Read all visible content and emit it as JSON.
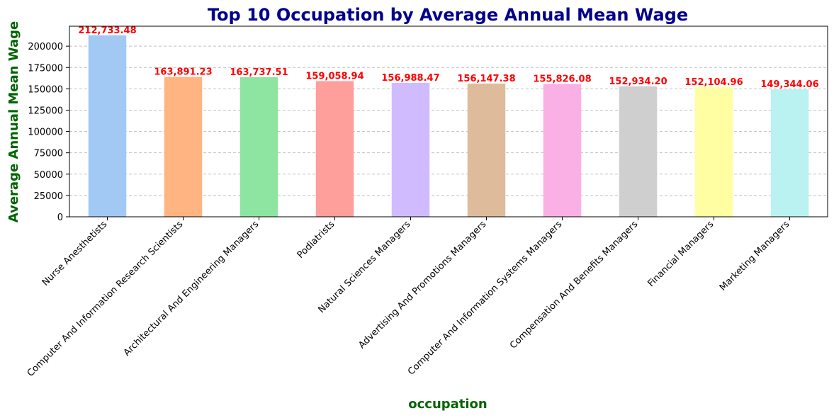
{
  "chart_data": {
    "type": "bar",
    "title": "Top 10 Occupation by Average Annual Mean Wage",
    "xlabel": "occupation",
    "ylabel": "Average Annual Mean Wage",
    "categories": [
      "Nurse Anesthetists",
      "Computer And Information Research Scientists",
      "Architectural And Engineering Managers",
      "Podiatrists",
      "Natural Sciences Managers",
      "Advertising And Promotions Managers",
      "Computer And Information Systems Managers",
      "Compensation And Benefits Managers",
      "Financial Managers",
      "Marketing Managers"
    ],
    "values": [
      212733.48,
      163891.23,
      163737.51,
      159058.94,
      156988.47,
      156147.38,
      155826.08,
      152934.2,
      152104.96,
      149344.06
    ],
    "data_labels": [
      "212,733.48",
      "163,891.23",
      "163,737.51",
      "159,058.94",
      "156,988.47",
      "156,147.38",
      "155,826.08",
      "152,934.20",
      "152,104.96",
      "149,344.06"
    ],
    "yticks": [
      0,
      25000,
      50000,
      75000,
      100000,
      125000,
      150000,
      175000,
      200000
    ],
    "ylim": [
      0,
      223370
    ],
    "grid": "y-dashed",
    "colors": {
      "bars": [
        "#a1c9f4",
        "#ffb482",
        "#8de5a1",
        "#ff9f9b",
        "#d0bbff",
        "#debb9b",
        "#fab0e4",
        "#cfcfcf",
        "#fffea3",
        "#b9f2f0"
      ],
      "title": "#00008b",
      "axis_label": "#006400",
      "data_label": "#ff0000",
      "grid": "#c0c0c0"
    }
  }
}
